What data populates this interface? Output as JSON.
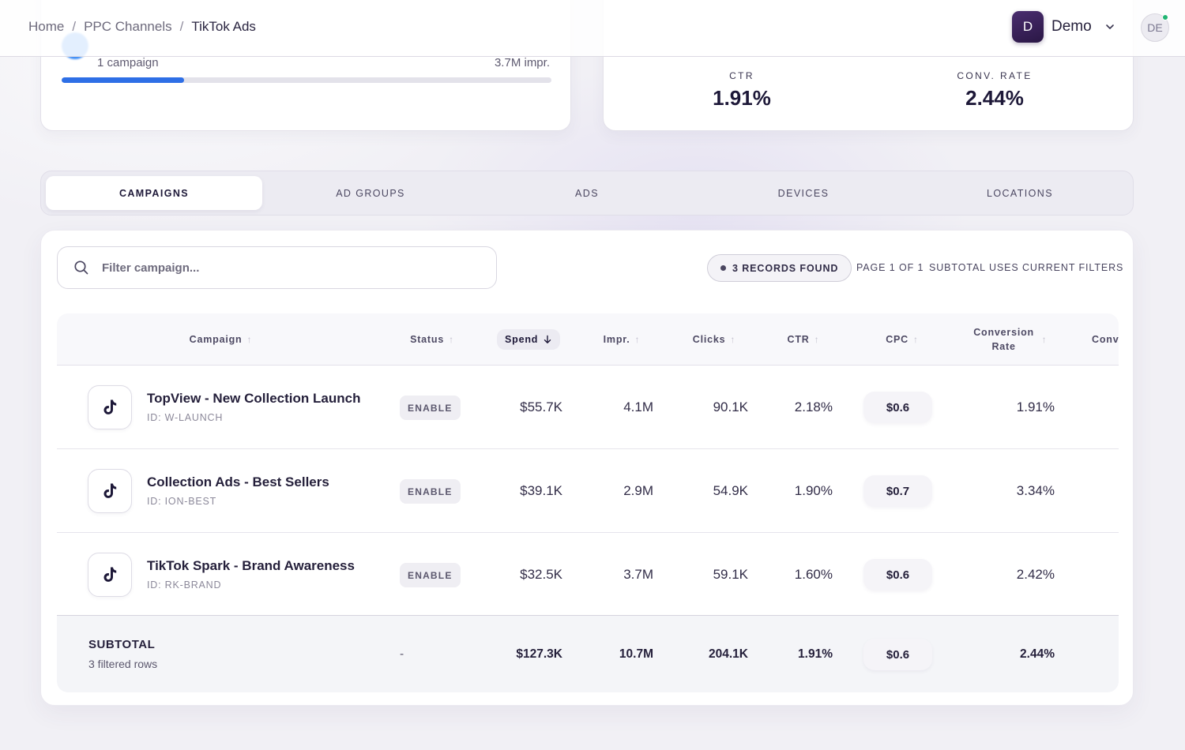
{
  "breadcrumb": {
    "items": [
      "Home",
      "PPC Channels",
      "TikTok Ads"
    ],
    "separator": "/"
  },
  "org": {
    "initial": "D",
    "name": "Demo"
  },
  "user": {
    "initials": "DE"
  },
  "summary_left": {
    "campaign_count": "1 campaign",
    "impressions": "3.7M impr.",
    "share_progress_percent": 25
  },
  "summary_right": {
    "ctr_label": "CTR",
    "ctr_value": "1.91%",
    "conv_label": "CONV. RATE",
    "conv_value": "2.44%"
  },
  "tabs": [
    {
      "label": "CAMPAIGNS",
      "active": true
    },
    {
      "label": "AD GROUPS",
      "active": false
    },
    {
      "label": "ADS",
      "active": false
    },
    {
      "label": "DEVICES",
      "active": false
    },
    {
      "label": "LOCATIONS",
      "active": false
    }
  ],
  "toolbar": {
    "search_placeholder": "Filter campaign...",
    "records_found": "3 RECORDS FOUND",
    "page_info": "PAGE 1 OF 1",
    "subtotal_note": "SUBTOTAL USES CURRENT FILTERS"
  },
  "table": {
    "columns": {
      "campaign": "Campaign",
      "status": "Status",
      "spend": "Spend",
      "impr": "Impr.",
      "clicks": "Clicks",
      "ctr": "CTR",
      "cpc": "CPC",
      "conv_rate": "Conversion Rate",
      "conv": "Conv"
    },
    "rows": [
      {
        "name": "TopView - New Collection Launch",
        "id": "ID: W-LAUNCH",
        "status": "ENABLE",
        "spend": "$55.7K",
        "impr": "4.1M",
        "clicks": "90.1K",
        "ctr": "2.18%",
        "cpc": "$0.6",
        "conv_rate": "1.91%"
      },
      {
        "name": "Collection Ads - Best Sellers",
        "id": "ID: ION-BEST",
        "status": "ENABLE",
        "spend": "$39.1K",
        "impr": "2.9M",
        "clicks": "54.9K",
        "ctr": "1.90%",
        "cpc": "$0.7",
        "conv_rate": "3.34%"
      },
      {
        "name": "TikTok Spark - Brand Awareness",
        "id": "ID: RK-BRAND",
        "status": "ENABLE",
        "spend": "$32.5K",
        "impr": "3.7M",
        "clicks": "59.1K",
        "ctr": "1.60%",
        "cpc": "$0.6",
        "conv_rate": "2.42%"
      }
    ],
    "subtotal": {
      "label": "SUBTOTAL",
      "rows_note": "3 filtered rows",
      "status": "-",
      "spend": "$127.3K",
      "impr": "10.7M",
      "clicks": "204.1K",
      "ctr": "1.91%",
      "cpc": "$0.6",
      "conv_rate": "2.44%"
    }
  },
  "colors": {
    "accent": "#2e6fe6",
    "org_avatar": "#3a2258",
    "presence": "#21b573"
  },
  "icons": [
    "search-icon",
    "chevron-down-icon",
    "tiktok-icon",
    "sort-arrow-icon"
  ]
}
